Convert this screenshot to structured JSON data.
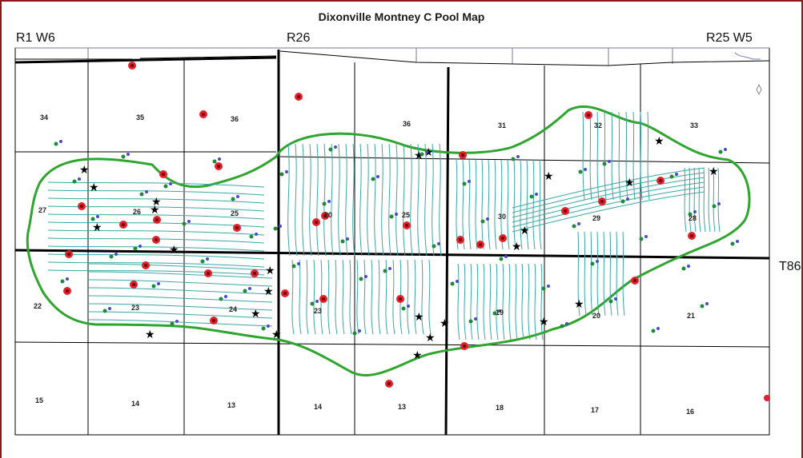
{
  "title": "Dixonville Montney C Pool Map",
  "range_labels": {
    "r1w6": "R1 W6",
    "r26": "R26",
    "r25w5": "R25 W5",
    "t86": "T86"
  },
  "sections": [
    "34",
    "35",
    "36",
    "36",
    "31",
    "32",
    "33",
    "27",
    "26",
    "25",
    "20",
    "25",
    "30",
    "29",
    "28",
    "22",
    "23",
    "24",
    "23",
    "19",
    "20",
    "21",
    "15",
    "14",
    "13",
    "14",
    "13",
    "18",
    "17",
    "16"
  ],
  "colors": {
    "border": "#8b1a1a",
    "pool_outline": "#2ea52e",
    "pipelines": "#3aa7a7",
    "grid_lines": "#000000",
    "wells_red": "#d62020",
    "wells_green": "#1e8a3c",
    "wells_blue": "#4a4ac8",
    "star": "#000000"
  }
}
